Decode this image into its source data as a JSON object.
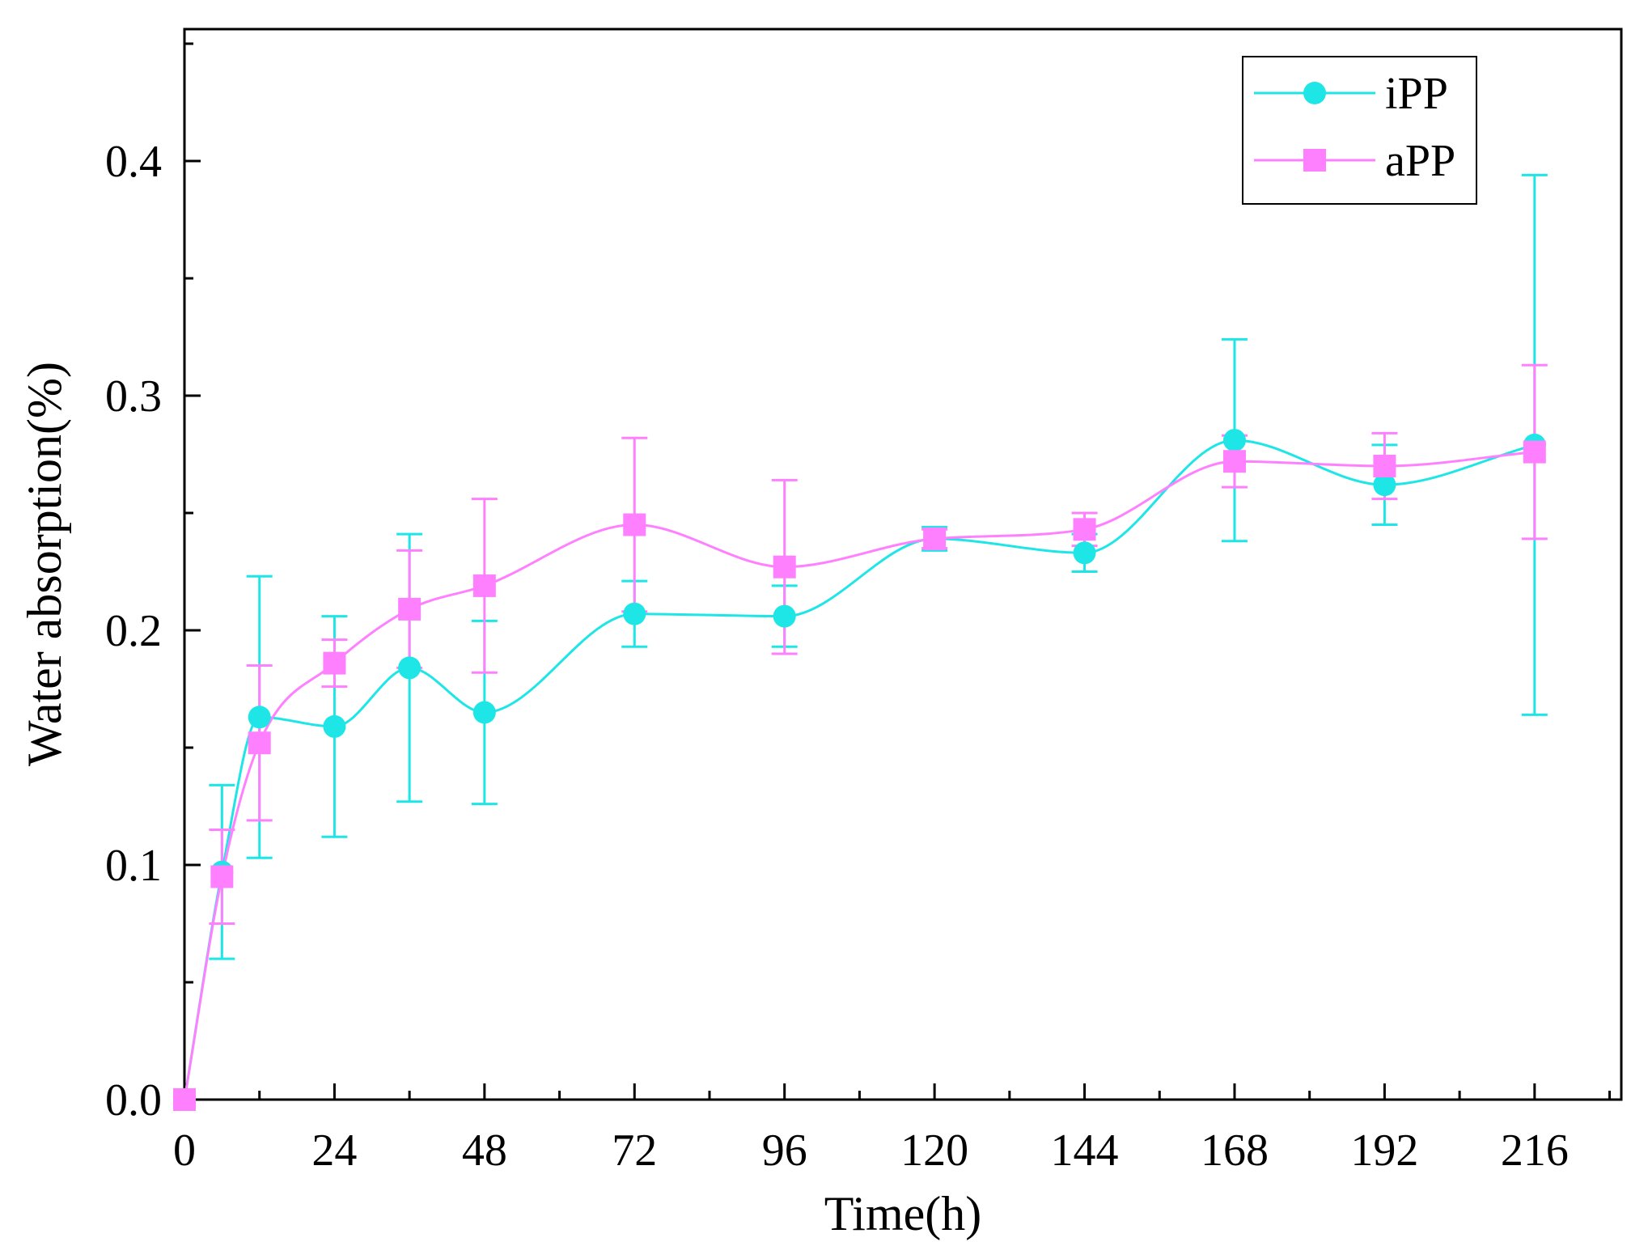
{
  "chart_data": {
    "type": "line",
    "title": "",
    "xlabel": "Time(h)",
    "ylabel": "Water absorption(%)",
    "xlim": [
      0,
      228
    ],
    "ylim": [
      0,
      0.45
    ],
    "x_ticks": [
      0,
      24,
      48,
      72,
      96,
      120,
      144,
      168,
      192,
      216
    ],
    "x_tick_labels": [
      "0",
      "24",
      "48",
      "72",
      "96",
      "120",
      "144",
      "168",
      "192",
      "216"
    ],
    "y_ticks": [
      0,
      0.1,
      0.2,
      0.3,
      0.4
    ],
    "y_tick_labels": [
      "0.0",
      "0.1",
      "0.2",
      "0.3",
      "0.4"
    ],
    "grid": false,
    "legend_position": "top-right",
    "series": [
      {
        "name": "iPP",
        "marker": "circle",
        "color": "#1ee6e6",
        "x": [
          0,
          6,
          12,
          24,
          36,
          48,
          72,
          96,
          120,
          144,
          168,
          192,
          216
        ],
        "y": [
          0.0,
          0.097,
          0.163,
          0.159,
          0.184,
          0.165,
          0.207,
          0.206,
          0.239,
          0.233,
          0.281,
          0.262,
          0.279
        ],
        "err": [
          0,
          0.037,
          0.06,
          0.047,
          0.057,
          0.039,
          0.014,
          0.013,
          0.005,
          0.008,
          0.043,
          0.017,
          0.115
        ]
      },
      {
        "name": "aPP",
        "marker": "square",
        "color": "#ff80ff",
        "x": [
          0,
          6,
          12,
          24,
          36,
          48,
          72,
          96,
          120,
          144,
          168,
          192,
          216
        ],
        "y": [
          0.0,
          0.095,
          0.152,
          0.186,
          0.209,
          0.219,
          0.245,
          0.227,
          0.239,
          0.243,
          0.272,
          0.27,
          0.276
        ],
        "err": [
          0,
          0.02,
          0.033,
          0.01,
          0.025,
          0.037,
          0.037,
          0.037,
          0.004,
          0.007,
          0.011,
          0.014,
          0.037
        ]
      }
    ]
  }
}
